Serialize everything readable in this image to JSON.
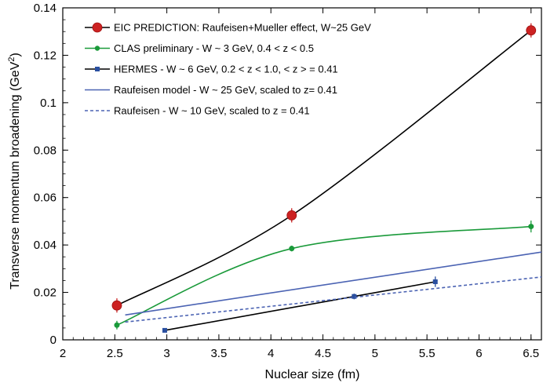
{
  "chart_data": {
    "type": "scatter",
    "xlabel": "Nuclear size (fm)",
    "ylabel": "Transverse momentum broadening (GeV",
    "ylabel_sup": "2",
    "ylabel_end": ")",
    "xlim": [
      2,
      6.6
    ],
    "ylim": [
      0,
      0.14
    ],
    "xticks": [
      "2",
      "2.5",
      "3",
      "3.5",
      "4",
      "4.5",
      "5",
      "5.5",
      "6",
      "6.5"
    ],
    "yticks": [
      "0",
      "0.02",
      "0.04",
      "0.06",
      "0.08",
      "0.1",
      "0.12",
      "0.14"
    ],
    "grid": false,
    "legend_position": "top-left",
    "series": [
      {
        "name": "EIC PREDICTION: Raufeisen+Mueller effect, W~25 GeV",
        "color": "#cc2222",
        "marker": "circle-large",
        "line": "solid",
        "line_color": "#000000",
        "points": [
          {
            "x": 2.52,
            "y": 0.0145,
            "err": 0.003
          },
          {
            "x": 4.2,
            "y": 0.0525,
            "err": 0.003
          },
          {
            "x": 6.5,
            "y": 0.1305,
            "err": 0.003
          }
        ]
      },
      {
        "name": "CLAS preliminary - W ~ 3 GeV, 0.4 < z < 0.5",
        "color": "#1a9a3a",
        "marker": "circle-small",
        "line": "solid",
        "line_color": "#1a9a3a",
        "points": [
          {
            "x": 2.52,
            "y": 0.0062,
            "err": 0.0018
          },
          {
            "x": 4.2,
            "y": 0.0385,
            "err": 0.0012
          },
          {
            "x": 6.5,
            "y": 0.0478,
            "err": 0.0025
          }
        ]
      },
      {
        "name": "HERMES - W ~ 6 GeV, 0.2 < z < 1.0, < z > = 0.41",
        "color": "#2a4fa0",
        "marker": "square",
        "line": "solid",
        "line_color": "#000000",
        "points": [
          {
            "x": 2.98,
            "y": 0.004,
            "err": 0.0008
          },
          {
            "x": 4.8,
            "y": 0.0183,
            "err": 0.0012
          },
          {
            "x": 5.58,
            "y": 0.0245,
            "err": 0.0022
          }
        ]
      },
      {
        "name": "Raufeisen model - W ~ 25 GeV, scaled to z= 0.41",
        "color": "#4b63b3",
        "marker": "none",
        "line": "solid",
        "line_color": "#4b63b3",
        "points": [
          {
            "x": 2.6,
            "y": 0.0105
          },
          {
            "x": 6.6,
            "y": 0.037
          }
        ]
      },
      {
        "name": "Raufeisen - W ~ 10 GeV, scaled to z = 0.41",
        "color": "#4b63b3",
        "marker": "none",
        "line": "dashed",
        "line_color": "#4b63b3",
        "points": [
          {
            "x": 2.6,
            "y": 0.0075
          },
          {
            "x": 6.6,
            "y": 0.0265
          }
        ]
      }
    ]
  }
}
